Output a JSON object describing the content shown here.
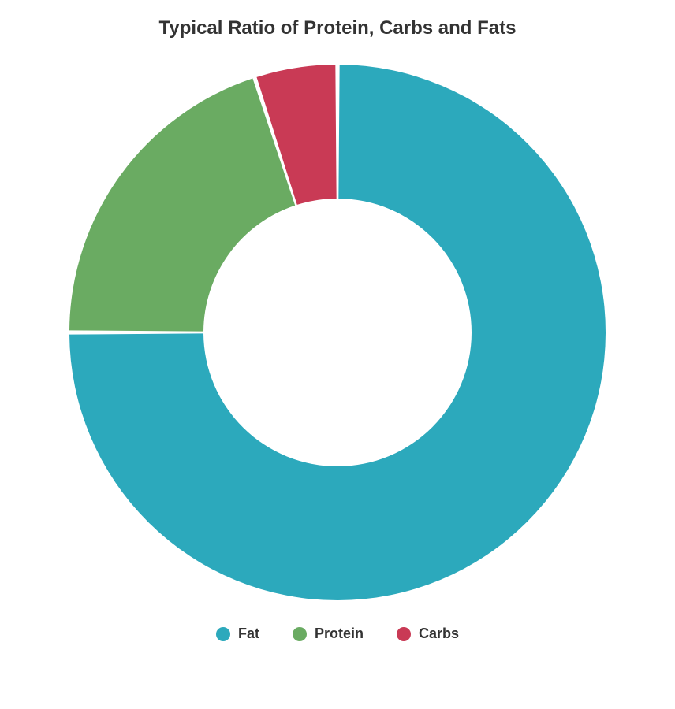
{
  "chart": {
    "type": "donut",
    "title": "Typical Ratio of Protein, Carbs and Fats",
    "title_fontsize": 24,
    "title_color": "#333333",
    "background_color": "#ffffff",
    "outer_radius": 340,
    "inner_radius": 170,
    "slice_gap_deg": 0.9,
    "start_angle_deg": -90,
    "slices": [
      {
        "label": "Fat",
        "value": 75,
        "color": "#2ca9bc"
      },
      {
        "label": "Protein",
        "value": 20,
        "color": "#6aab62"
      },
      {
        "label": "Carbs",
        "value": 5,
        "color": "#c93a55"
      }
    ],
    "legend": {
      "fontsize": 18,
      "color": "#333333",
      "swatch_shape": "circle",
      "swatch_size": 18
    }
  }
}
